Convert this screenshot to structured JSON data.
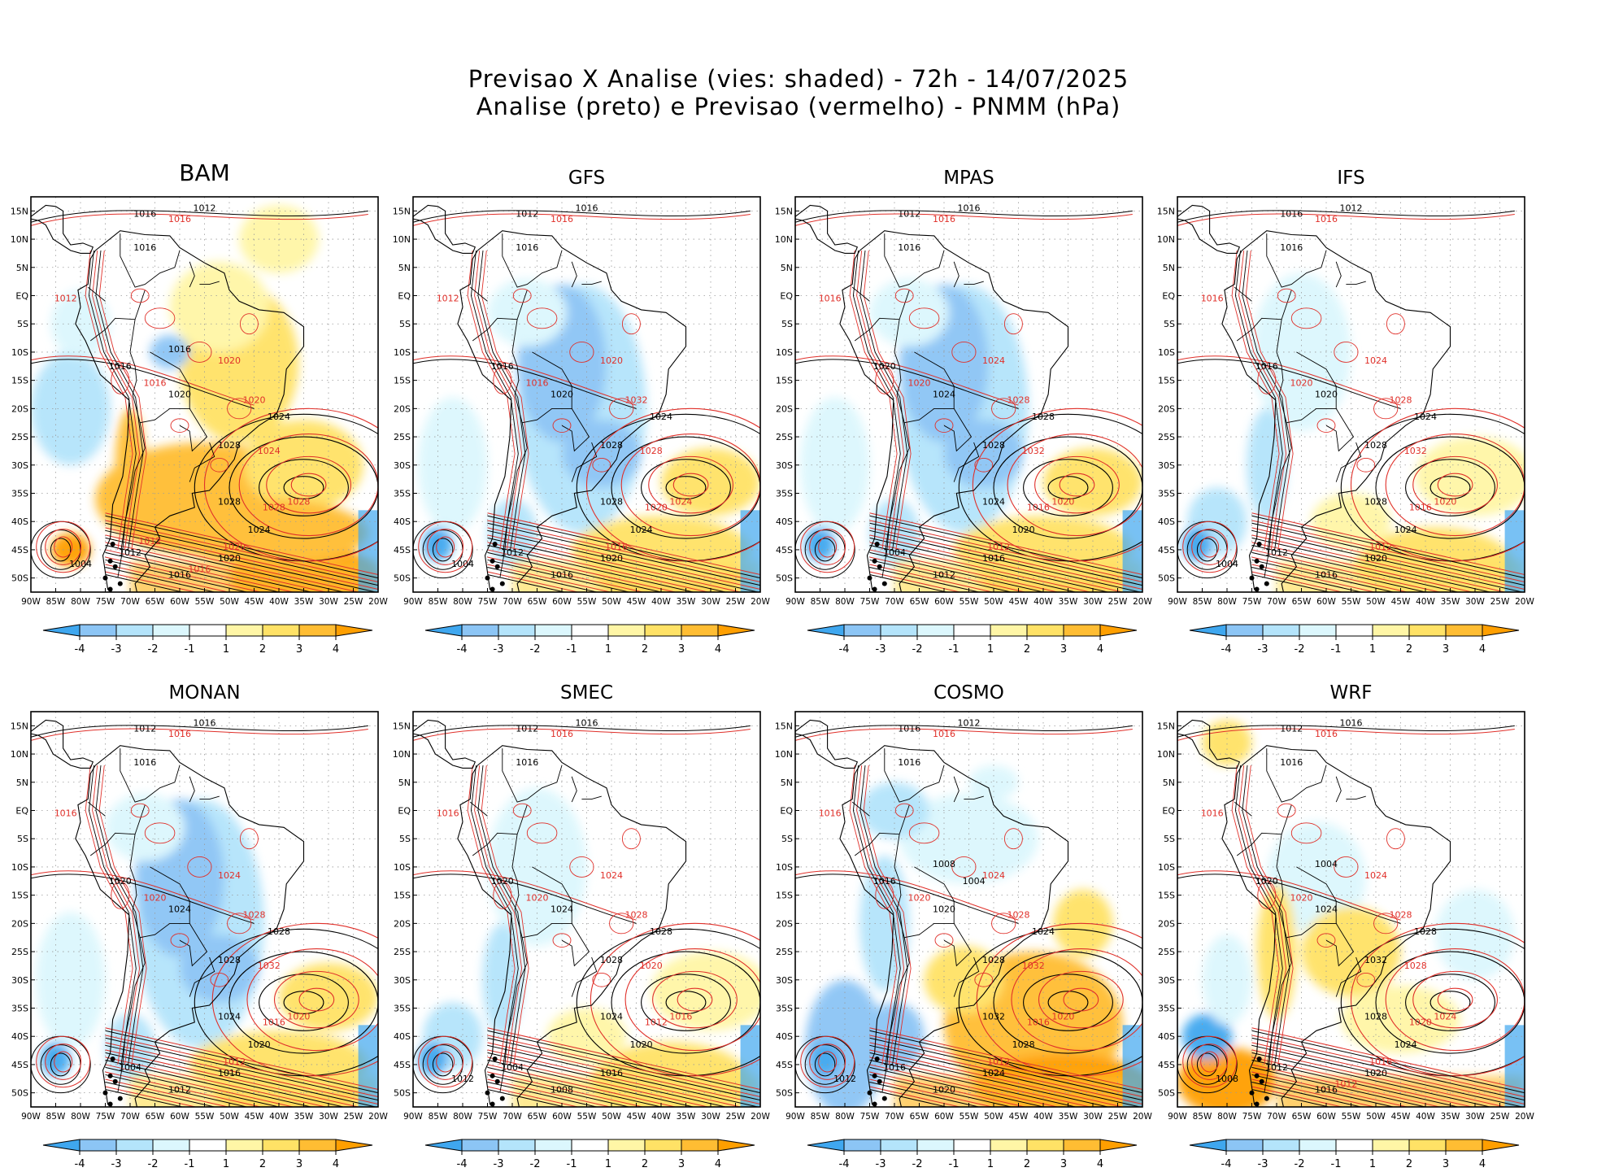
{
  "title": {
    "line1": "Previsao X Analise (vies: shaded) - 72h - 14/07/2025",
    "line2": "Analise (preto) e Previsao (vermelho) - PNMM (hPa)"
  },
  "map_axes": {
    "lat_ticks": [
      "15N",
      "10N",
      "5N",
      "EQ",
      "5S",
      "10S",
      "15S",
      "20S",
      "25S",
      "30S",
      "35S",
      "40S",
      "45S",
      "50S"
    ],
    "lon_ticks": [
      "90W",
      "85W",
      "80W",
      "75W",
      "70W",
      "65W",
      "60W",
      "55W",
      "50W",
      "45W",
      "40W",
      "35W",
      "30W",
      "25W",
      "20W"
    ]
  },
  "colorbar": {
    "labels": [
      "-4",
      "-3",
      "-2",
      "-1",
      "1",
      "2",
      "3",
      "4"
    ],
    "colors": [
      "#3fa7ef",
      "#8cc5f5",
      "#b4e4fb",
      "#dcf7fd",
      "#ffffff",
      "#fff6a6",
      "#ffe266",
      "#ffbd33",
      "#ff9f00"
    ]
  },
  "contour_colors": {
    "analysis": "#000000",
    "forecast": "#e0302a"
  },
  "panels": [
    {
      "id": "BAM",
      "title": "BAM",
      "bias": "warm",
      "labels_black": [
        "1016",
        "1012",
        "1016",
        "1016",
        "1020",
        "1024",
        "1028",
        "1028",
        "1024",
        "1020",
        "1016",
        "1012",
        "1004",
        "1016"
      ],
      "labels_red": [
        "1016",
        "1012",
        "1016",
        "1020",
        "1020",
        "1024",
        "1028",
        "1028",
        "1020",
        "1016",
        "1012"
      ]
    },
    {
      "id": "GFS",
      "title": "GFS",
      "bias": "cool-land",
      "labels_black": [
        "1012",
        "1016",
        "1016",
        "1016",
        "1020",
        "1024",
        "1028",
        "1028",
        "1024",
        "1020",
        "1016",
        "1012",
        "1004"
      ],
      "labels_red": [
        "1016",
        "1012",
        "1016",
        "1020",
        "1032",
        "1028",
        "1024",
        "1020",
        "1016"
      ]
    },
    {
      "id": "MPAS",
      "title": "MPAS",
      "bias": "cool-land",
      "labels_black": [
        "1012",
        "1016",
        "1016",
        "1020",
        "1024",
        "1028",
        "1028",
        "1024",
        "1020",
        "1016",
        "1012",
        "1004"
      ],
      "labels_red": [
        "1016",
        "1016",
        "1020",
        "1024",
        "1028",
        "1032",
        "1020",
        "1016",
        "1012"
      ]
    },
    {
      "id": "IFS",
      "title": "IFS",
      "bias": "neutral",
      "labels_black": [
        "1016",
        "1012",
        "1016",
        "1016",
        "1020",
        "1024",
        "1028",
        "1028",
        "1024",
        "1020",
        "1016",
        "1012",
        "1004"
      ],
      "labels_red": [
        "1016",
        "1016",
        "1020",
        "1024",
        "1028",
        "1032",
        "1020",
        "1016",
        "1012"
      ]
    },
    {
      "id": "MONAN",
      "title": "MONAN",
      "bias": "cool-land",
      "labels_black": [
        "1012",
        "1016",
        "1016",
        "1020",
        "1024",
        "1028",
        "1028",
        "1024",
        "1020",
        "1016",
        "1012",
        "1004"
      ],
      "labels_red": [
        "1016",
        "1016",
        "1020",
        "1024",
        "1028",
        "1032",
        "1020",
        "1016",
        "1012"
      ]
    },
    {
      "id": "SMEC",
      "title": "SMEC",
      "bias": "neutral",
      "labels_black": [
        "1012",
        "1016",
        "1016",
        "1020",
        "1024",
        "1028",
        "1028",
        "1024",
        "1020",
        "1016",
        "1008",
        "1004",
        "1012"
      ],
      "labels_red": [
        "1016",
        "1016",
        "1020",
        "1024",
        "1028",
        "1020",
        "1016",
        "1012"
      ]
    },
    {
      "id": "COSMO",
      "title": "COSMO",
      "bias": "warm-ocean",
      "labels_black": [
        "1016",
        "1012",
        "1016",
        "1016",
        "1020",
        "1024",
        "1028",
        "1032",
        "1028",
        "1024",
        "1020",
        "1016",
        "1012",
        "1008",
        "1004"
      ],
      "labels_red": [
        "1016",
        "1016",
        "1020",
        "1024",
        "1028",
        "1032",
        "1020",
        "1016",
        "1012"
      ]
    },
    {
      "id": "WRF",
      "title": "WRF",
      "bias": "mixed",
      "labels_black": [
        "1012",
        "1016",
        "1016",
        "1020",
        "1024",
        "1028",
        "1032",
        "1028",
        "1024",
        "1020",
        "1016",
        "1012",
        "1008",
        "1004"
      ],
      "labels_red": [
        "1016",
        "1016",
        "1020",
        "1024",
        "1028",
        "1028",
        "1024",
        "1020",
        "1016",
        "1012"
      ]
    }
  ]
}
